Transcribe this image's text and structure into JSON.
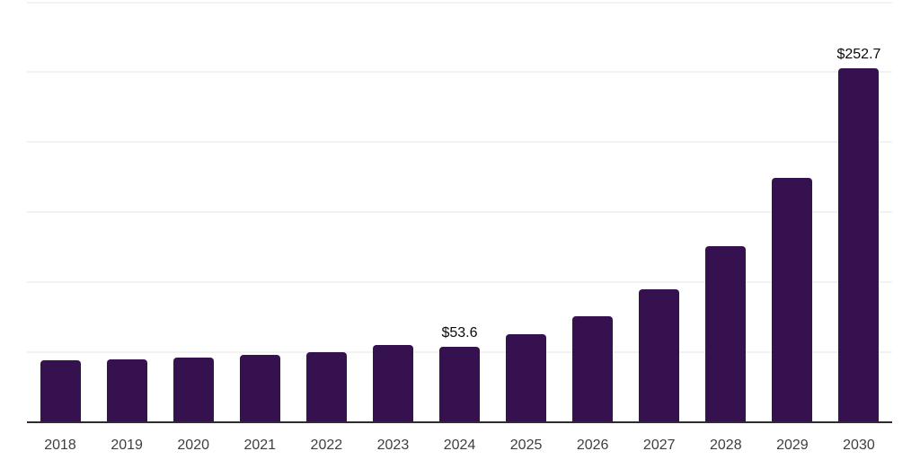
{
  "chart_data": {
    "type": "bar",
    "title": "",
    "xlabel": "",
    "ylabel": "",
    "categories": [
      "2018",
      "2019",
      "2020",
      "2021",
      "2022",
      "2023",
      "2024",
      "2025",
      "2026",
      "2027",
      "2028",
      "2029",
      "2030"
    ],
    "values": [
      44.5,
      44.8,
      46.2,
      48.1,
      50.0,
      55.0,
      53.6,
      63.0,
      75.9,
      95.2,
      126.0,
      174.4,
      252.7
    ],
    "data_labels": [
      {
        "category": "2024",
        "label": "$53.6"
      },
      {
        "category": "2030",
        "label": "$252.7"
      }
    ],
    "ylim": [
      0,
      300
    ],
    "gridline_values": [
      50,
      100,
      150,
      200,
      250,
      300
    ],
    "grid": "on",
    "legend": "none",
    "colors": {
      "bar": "#351150",
      "grid": "#f2f2f2",
      "axis": "#2d2d2d",
      "tick_label": "#3f3f3f",
      "data_label": "#0a0a0a",
      "background": "#ffffff"
    }
  }
}
